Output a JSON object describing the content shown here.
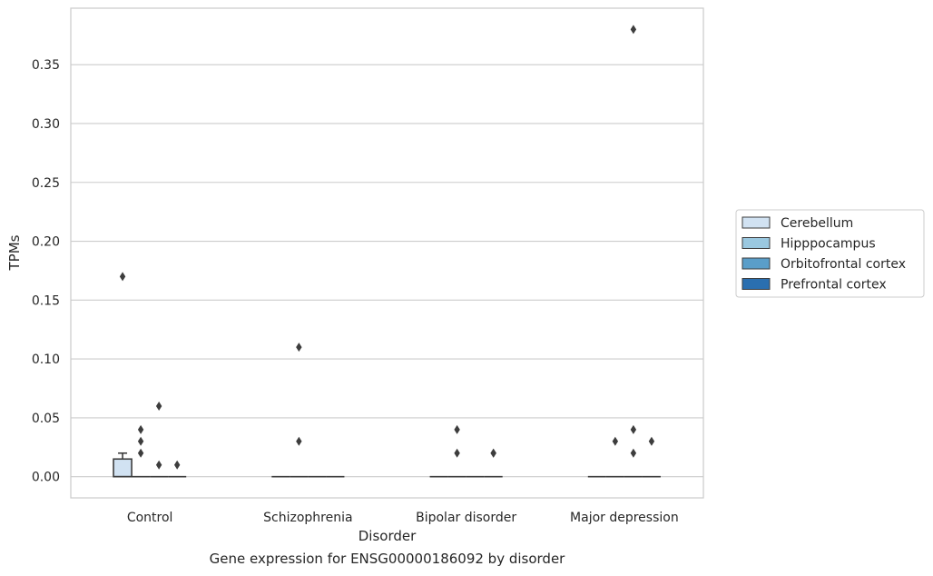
{
  "chart_data": {
    "type": "box",
    "xlabel": "Disorder",
    "ylabel": "TPMs",
    "categories": [
      "Control",
      "Schizophrenia",
      "Bipolar disorder",
      "Major depression"
    ],
    "ylim": [
      -0.018,
      0.398
    ],
    "yticks": [
      "0.00",
      "0.05",
      "0.10",
      "0.15",
      "0.20",
      "0.25",
      "0.30",
      "0.35"
    ],
    "grid": true,
    "legend_position": "right",
    "series": [
      {
        "name": "Cerebellum",
        "color": "#d1e2f2",
        "boxes": [
          {
            "q1": 0.0,
            "median": 0.0,
            "q3": 0.015,
            "whisker_low": 0.0,
            "whisker_high": 0.02,
            "outliers": [
              0.17
            ]
          },
          {
            "q1": 0.0,
            "median": 0.0,
            "q3": 0.0,
            "whisker_low": 0.0,
            "whisker_high": 0.0,
            "outliers": []
          },
          {
            "q1": 0.0,
            "median": 0.0,
            "q3": 0.0,
            "whisker_low": 0.0,
            "whisker_high": 0.0,
            "outliers": []
          },
          {
            "q1": 0.0,
            "median": 0.0,
            "q3": 0.0,
            "whisker_low": 0.0,
            "whisker_high": 0.0,
            "outliers": []
          }
        ]
      },
      {
        "name": "Hipppocampus",
        "color": "#9ac8e0",
        "boxes": [
          {
            "q1": 0.0,
            "median": 0.0,
            "q3": 0.0,
            "whisker_low": 0.0,
            "whisker_high": 0.0,
            "outliers": [
              0.02,
              0.03,
              0.04
            ]
          },
          {
            "q1": 0.0,
            "median": 0.0,
            "q3": 0.0,
            "whisker_low": 0.0,
            "whisker_high": 0.0,
            "outliers": [
              0.03,
              0.11
            ]
          },
          {
            "q1": 0.0,
            "median": 0.0,
            "q3": 0.0,
            "whisker_low": 0.0,
            "whisker_high": 0.0,
            "outliers": [
              0.02,
              0.04
            ]
          },
          {
            "q1": 0.0,
            "median": 0.0,
            "q3": 0.0,
            "whisker_low": 0.0,
            "whisker_high": 0.0,
            "outliers": [
              0.03
            ]
          }
        ]
      },
      {
        "name": "Orbitofrontal cortex",
        "color": "#5a9ec9",
        "boxes": [
          {
            "q1": 0.0,
            "median": 0.0,
            "q3": 0.0,
            "whisker_low": 0.0,
            "whisker_high": 0.0,
            "outliers": [
              0.01,
              0.06
            ]
          },
          {
            "q1": 0.0,
            "median": 0.0,
            "q3": 0.0,
            "whisker_low": 0.0,
            "whisker_high": 0.0,
            "outliers": []
          },
          {
            "q1": 0.0,
            "median": 0.0,
            "q3": 0.0,
            "whisker_low": 0.0,
            "whisker_high": 0.0,
            "outliers": []
          },
          {
            "q1": 0.0,
            "median": 0.0,
            "q3": 0.0,
            "whisker_low": 0.0,
            "whisker_high": 0.0,
            "outliers": [
              0.02,
              0.04,
              0.38
            ]
          }
        ]
      },
      {
        "name": "Prefrontal cortex",
        "color": "#2a6fb0",
        "boxes": [
          {
            "q1": 0.0,
            "median": 0.0,
            "q3": 0.0,
            "whisker_low": 0.0,
            "whisker_high": 0.0,
            "outliers": [
              0.01
            ]
          },
          {
            "q1": 0.0,
            "median": 0.0,
            "q3": 0.0,
            "whisker_low": 0.0,
            "whisker_high": 0.0,
            "outliers": []
          },
          {
            "q1": 0.0,
            "median": 0.0,
            "q3": 0.0,
            "whisker_low": 0.0,
            "whisker_high": 0.0,
            "outliers": [
              0.02,
              0.02
            ]
          },
          {
            "q1": 0.0,
            "median": 0.0,
            "q3": 0.0,
            "whisker_low": 0.0,
            "whisker_high": 0.0,
            "outliers": [
              0.03
            ]
          }
        ]
      }
    ]
  },
  "caption": "Gene expression for ENSG00000186092 by disorder"
}
